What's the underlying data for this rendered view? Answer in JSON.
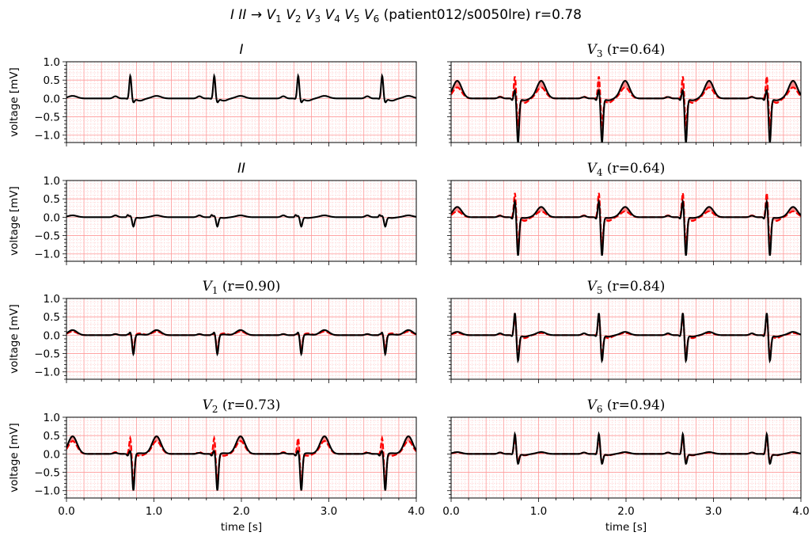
{
  "figure": {
    "suptitle": "I II → V1 V2 V3 V4 V5 V6 (patient012/s0050lre) r=0.78",
    "suptitle_parts": [
      {
        "t": "I",
        "i": true
      },
      {
        "t": " "
      },
      {
        "t": "II",
        "i": true
      },
      {
        "t": " → "
      },
      {
        "t": "V",
        "i": true
      },
      {
        "t": "1",
        "sub": true
      },
      {
        "t": " "
      },
      {
        "t": "V",
        "i": true
      },
      {
        "t": "2",
        "sub": true
      },
      {
        "t": " "
      },
      {
        "t": "V",
        "i": true
      },
      {
        "t": "3",
        "sub": true
      },
      {
        "t": " "
      },
      {
        "t": "V",
        "i": true
      },
      {
        "t": "4",
        "sub": true
      },
      {
        "t": " "
      },
      {
        "t": "V",
        "i": true
      },
      {
        "t": "5",
        "sub": true
      },
      {
        "t": " "
      },
      {
        "t": "V",
        "i": true
      },
      {
        "t": "6",
        "sub": true
      },
      {
        "t": " (patient012/s0050lre) r=0.78"
      }
    ],
    "ylabel": "voltage [mV]",
    "xlabel": "time [s]",
    "colors": {
      "actual": "#000000",
      "predicted": "#ff0000",
      "fill": "#ff6b6b",
      "grid_major": "#ff9a9a",
      "grid_minor": "#ffc9c9"
    }
  },
  "chart_data": [
    {
      "type": "line",
      "lead": "I",
      "title": "I",
      "is_input": true,
      "xlim": [
        0,
        4
      ],
      "ylim": [
        -1.2,
        1
      ],
      "xticks": [
        "0.0",
        "1.0",
        "2.0",
        "3.0",
        "4.0"
      ],
      "yticks": [
        "1.0",
        "0.5",
        "0.0",
        "−0.5",
        "−1.0"
      ],
      "beats": [
        0.73,
        1.69,
        2.65,
        3.61
      ],
      "wave": {
        "p": 0.06,
        "q": -0.02,
        "r": 0.62,
        "s": -0.1,
        "t": 0.07,
        "st": -0.06
      },
      "series": [
        {
          "values_desc": "measured"
        }
      ]
    },
    {
      "type": "line",
      "lead": "II",
      "title": "II",
      "is_input": true,
      "xlim": [
        0,
        4
      ],
      "ylim": [
        -1.2,
        1
      ],
      "xticks": [
        "0.0",
        "1.0",
        "2.0",
        "3.0",
        "4.0"
      ],
      "yticks": [
        "1.0",
        "0.5",
        "0.0",
        "−0.5",
        "−1.0"
      ],
      "beats": [
        0.73,
        1.69,
        2.65,
        3.61
      ],
      "wave": {
        "p": 0.05,
        "q": 0.06,
        "r": 0.04,
        "s": -0.25,
        "t": 0.05,
        "st": -0.02
      },
      "series": [
        {
          "values_desc": "measured"
        }
      ]
    },
    {
      "type": "line",
      "lead": "V1",
      "title": "V1 (r=0.90)",
      "title_main": "V",
      "title_sub": "1",
      "title_tail": " (r=0.90)",
      "r": 0.9,
      "xlim": [
        0,
        4
      ],
      "ylim": [
        -1.2,
        1
      ],
      "xticks": [
        "0.0",
        "1.0",
        "2.0",
        "3.0",
        "4.0"
      ],
      "yticks": [
        "1.0",
        "0.5",
        "0.0",
        "−0.5",
        "−1.0"
      ],
      "beats": [
        0.73,
        1.69,
        2.65,
        3.61
      ],
      "wave": {
        "p": 0.03,
        "q": 0.02,
        "r": 0.08,
        "s": -0.52,
        "t": 0.14,
        "st": 0.02
      },
      "pred": {
        "p": 0.03,
        "q": 0.0,
        "r": 0.05,
        "s": -0.38,
        "t": 0.1,
        "st": 0.05
      }
    },
    {
      "type": "line",
      "lead": "V3",
      "title": "V3 (r=0.64)",
      "title_main": "V",
      "title_sub": "3",
      "title_tail": " (r=0.64)",
      "r": 0.64,
      "xlim": [
        0,
        4
      ],
      "ylim": [
        -1.2,
        1
      ],
      "xticks": [
        "0.0",
        "1.0",
        "2.0",
        "3.0",
        "4.0"
      ],
      "yticks": [
        "1.0",
        "0.5",
        "0.0",
        "−0.5",
        "−1.0"
      ],
      "beats": [
        0.73,
        1.69,
        2.65,
        3.61
      ],
      "wave": {
        "p": 0.04,
        "q": -0.05,
        "r": 0.25,
        "s": -1.2,
        "t": 0.48,
        "st": -0.05
      },
      "pred": {
        "p": 0.05,
        "q": 0.0,
        "r": 0.62,
        "s": -0.7,
        "t": 0.3,
        "st": -0.12
      }
    },
    {
      "type": "line",
      "lead": "V4",
      "title": "V4 (r=0.64)",
      "title_main": "V",
      "title_sub": "4",
      "title_tail": " (r=0.64)",
      "r": 0.64,
      "xlim": [
        0,
        4
      ],
      "ylim": [
        -1.2,
        1
      ],
      "xticks": [
        "0.0",
        "1.0",
        "2.0",
        "3.0",
        "4.0"
      ],
      "yticks": [
        "1.0",
        "0.5",
        "0.0",
        "−0.5",
        "−1.0"
      ],
      "beats": [
        0.73,
        1.69,
        2.65,
        3.61
      ],
      "wave": {
        "p": 0.04,
        "q": -0.05,
        "r": 0.45,
        "s": -1.05,
        "t": 0.28,
        "st": -0.02
      },
      "pred": {
        "p": 0.05,
        "q": 0.0,
        "r": 0.68,
        "s": -0.75,
        "t": 0.16,
        "st": -0.1
      }
    },
    {
      "type": "line",
      "lead": "V2",
      "title": "V2 (r=0.73)",
      "title_main": "V",
      "title_sub": "2",
      "title_tail": " (r=0.73)",
      "r": 0.73,
      "xlim": [
        0,
        4
      ],
      "ylim": [
        -1.2,
        1
      ],
      "xticks": [
        "0.0",
        "1.0",
        "2.0",
        "3.0",
        "4.0"
      ],
      "yticks": [
        "1.0",
        "0.5",
        "0.0",
        "−0.5",
        "−1.0"
      ],
      "beats": [
        0.73,
        1.69,
        2.65,
        3.61
      ],
      "wave": {
        "p": 0.03,
        "q": -0.05,
        "r": 0.1,
        "s": -1.0,
        "t": 0.48,
        "st": 0.02
      },
      "pred": {
        "p": 0.05,
        "q": 0.0,
        "r": 0.45,
        "s": -0.8,
        "t": 0.35,
        "st": -0.05
      }
    },
    {
      "type": "line",
      "lead": "V5",
      "title": "V5 (r=0.84)",
      "title_main": "V",
      "title_sub": "5",
      "title_tail": " (r=0.84)",
      "r": 0.84,
      "xlim": [
        0,
        4
      ],
      "ylim": [
        -1.2,
        1
      ],
      "xticks": [
        "0.0",
        "1.0",
        "2.0",
        "3.0",
        "4.0"
      ],
      "yticks": [
        "1.0",
        "0.5",
        "0.0",
        "−0.5",
        "−1.0"
      ],
      "beats": [
        0.73,
        1.69,
        2.65,
        3.61
      ],
      "wave": {
        "p": 0.05,
        "q": -0.04,
        "r": 0.62,
        "s": -0.7,
        "t": 0.09,
        "st": -0.04
      },
      "pred": {
        "p": 0.04,
        "q": 0.0,
        "r": 0.55,
        "s": -0.55,
        "t": 0.06,
        "st": -0.08
      }
    },
    {
      "type": "line",
      "lead": "V6",
      "title": "V6 (r=0.94)",
      "title_main": "V",
      "title_sub": "6",
      "title_tail": " (r=0.94)",
      "r": 0.94,
      "xlim": [
        0,
        4
      ],
      "ylim": [
        -1.2,
        1
      ],
      "xticks": [
        "0.0",
        "1.0",
        "2.0",
        "3.0",
        "4.0"
      ],
      "yticks": [
        "1.0",
        "0.5",
        "0.0",
        "−0.5",
        "−1.0"
      ],
      "beats": [
        0.73,
        1.69,
        2.65,
        3.61
      ],
      "wave": {
        "p": 0.04,
        "q": -0.02,
        "r": 0.55,
        "s": -0.27,
        "t": 0.05,
        "st": -0.03
      },
      "pred": {
        "p": 0.04,
        "q": 0.0,
        "r": 0.45,
        "s": -0.2,
        "t": 0.04,
        "st": -0.04
      }
    }
  ]
}
